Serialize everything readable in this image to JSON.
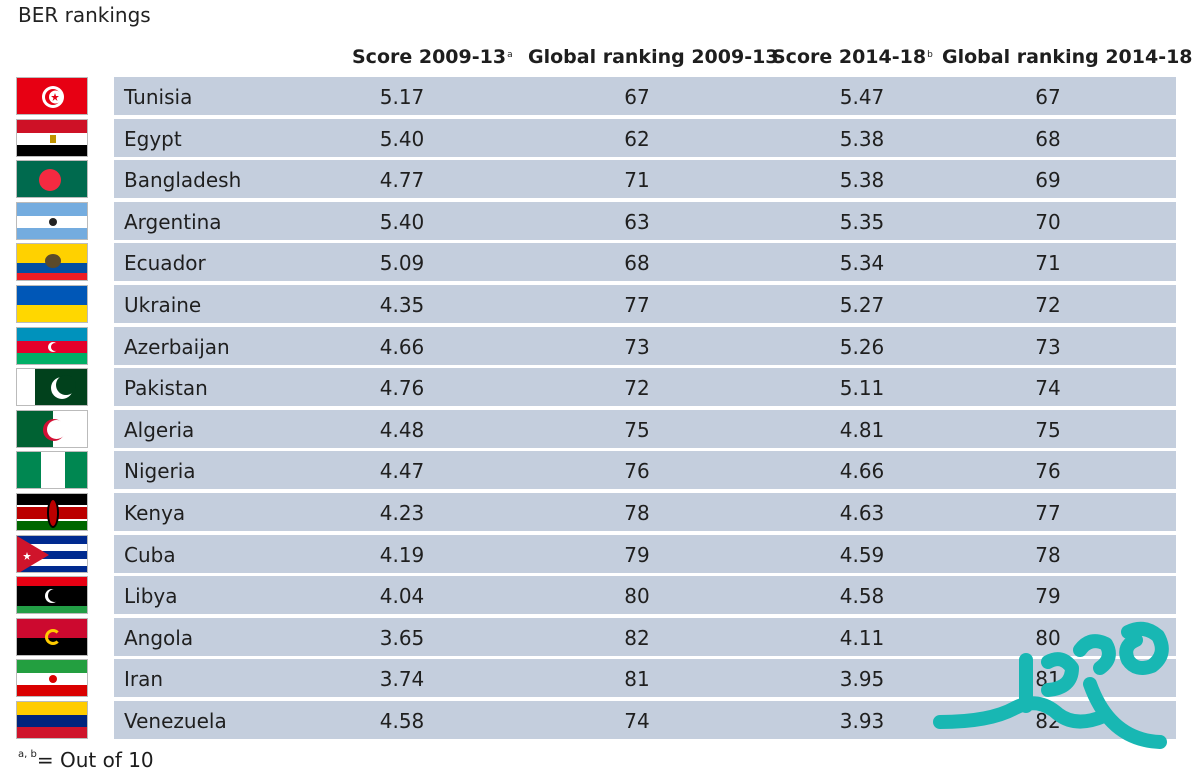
{
  "title": "BER rankings",
  "headers": {
    "score_2009": "Score 2009-13",
    "score_2009_sup": "a",
    "rank_2009": "Global ranking 2009-13",
    "score_2014": "Score 2014-18",
    "score_2014_sup": "b",
    "rank_2014": "Global ranking 2014-18"
  },
  "rows": [
    {
      "country": "Tunisia",
      "score_2009": "5.17",
      "rank_2009": "67",
      "score_2014": "5.47",
      "rank_2014": "67",
      "flag_icon": "tunisia-flag-icon"
    },
    {
      "country": "Egypt",
      "score_2009": "5.40",
      "rank_2009": "62",
      "score_2014": "5.38",
      "rank_2014": "68",
      "flag_icon": "egypt-flag-icon"
    },
    {
      "country": "Bangladesh",
      "score_2009": "4.77",
      "rank_2009": "71",
      "score_2014": "5.38",
      "rank_2014": "69",
      "flag_icon": "bangladesh-flag-icon"
    },
    {
      "country": "Argentina",
      "score_2009": "5.40",
      "rank_2009": "63",
      "score_2014": "5.35",
      "rank_2014": "70",
      "flag_icon": "argentina-flag-icon"
    },
    {
      "country": "Ecuador",
      "score_2009": "5.09",
      "rank_2009": "68",
      "score_2014": "5.34",
      "rank_2014": "71",
      "flag_icon": "ecuador-flag-icon"
    },
    {
      "country": "Ukraine",
      "score_2009": "4.35",
      "rank_2009": "77",
      "score_2014": "5.27",
      "rank_2014": "72",
      "flag_icon": "ukraine-flag-icon"
    },
    {
      "country": "Azerbaijan",
      "score_2009": "4.66",
      "rank_2009": "73",
      "score_2014": "5.26",
      "rank_2014": "73",
      "flag_icon": "azerbaijan-flag-icon"
    },
    {
      "country": "Pakistan",
      "score_2009": "4.76",
      "rank_2009": "72",
      "score_2014": "5.11",
      "rank_2014": "74",
      "flag_icon": "pakistan-flag-icon"
    },
    {
      "country": "Algeria",
      "score_2009": "4.48",
      "rank_2009": "75",
      "score_2014": "4.81",
      "rank_2014": "75",
      "flag_icon": "algeria-flag-icon"
    },
    {
      "country": "Nigeria",
      "score_2009": "4.47",
      "rank_2009": "76",
      "score_2014": "4.66",
      "rank_2014": "76",
      "flag_icon": "nigeria-flag-icon"
    },
    {
      "country": "Kenya",
      "score_2009": "4.23",
      "rank_2009": "78",
      "score_2014": "4.63",
      "rank_2014": "77",
      "flag_icon": "kenya-flag-icon"
    },
    {
      "country": "Cuba",
      "score_2009": "4.19",
      "rank_2009": "79",
      "score_2014": "4.59",
      "rank_2014": "78",
      "flag_icon": "cuba-flag-icon"
    },
    {
      "country": "Libya",
      "score_2009": "4.04",
      "rank_2009": "80",
      "score_2014": "4.58",
      "rank_2014": "79",
      "flag_icon": "libya-flag-icon"
    },
    {
      "country": "Angola",
      "score_2009": "3.65",
      "rank_2009": "82",
      "score_2014": "4.11",
      "rank_2014": "80",
      "flag_icon": "angola-flag-icon"
    },
    {
      "country": "Iran",
      "score_2009": "3.74",
      "rank_2009": "81",
      "score_2014": "3.95",
      "rank_2014": "81",
      "flag_icon": "iran-flag-icon"
    },
    {
      "country": "Venezuela",
      "score_2009": "4.58",
      "rank_2009": "74",
      "score_2014": "3.93",
      "rank_2014": "82",
      "flag_icon": "venezuela-flag-icon"
    }
  ],
  "footnote": {
    "sup": "a, b",
    "text": "= Out of 10"
  },
  "watermark": {
    "text": "صفحه اقتصاد",
    "color": "#18b7b3"
  },
  "colors": {
    "row_background": "#c4cedd"
  }
}
